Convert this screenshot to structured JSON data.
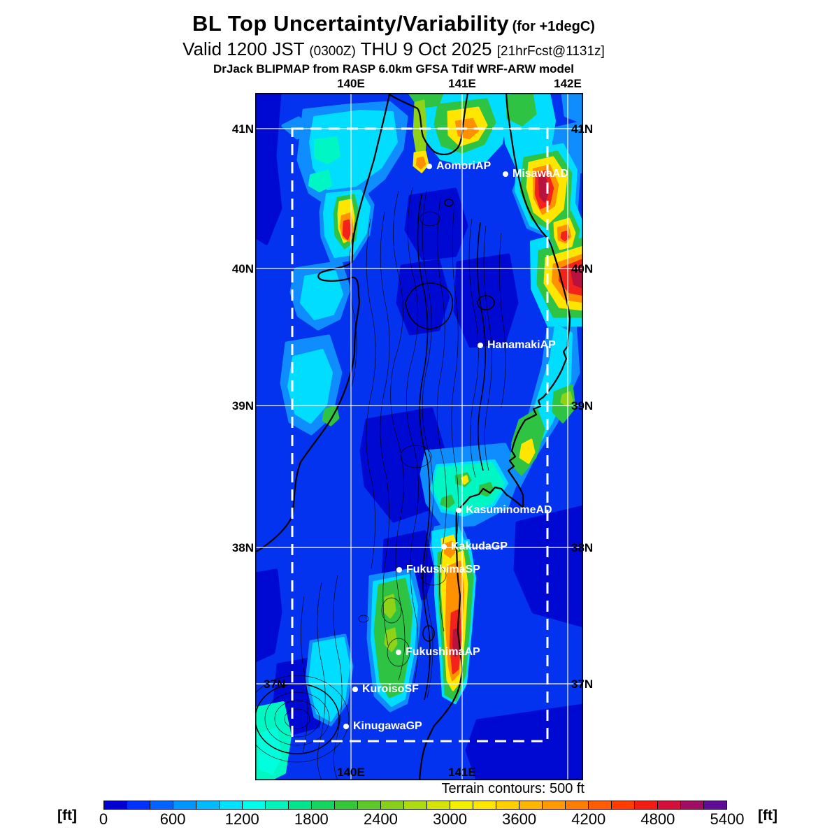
{
  "header": {
    "title": "BL Top Uncertainty/Variability",
    "title_note": "(for +1degC)",
    "valid_prefix": "Valid 1200 JST",
    "valid_zulu": "(0300Z)",
    "valid_date": "THU 9 Oct 2025",
    "valid_fcst": "[21hrFcst@1131z]",
    "model_line": "DrJack BLIPMAP from RASP 6.0km GFSA Tdif WRF-ARW model"
  },
  "map": {
    "grid": {
      "lat_labels": [
        "41N",
        "40N",
        "39N",
        "38N",
        "37N"
      ],
      "lon_labels_top": [
        "140E",
        "141E",
        "142E"
      ],
      "lon_labels_bottom": [
        "140E",
        "141E"
      ]
    },
    "stations": [
      {
        "name": "AomoriAP"
      },
      {
        "name": "MisawaAD"
      },
      {
        "name": "HanamakiAP"
      },
      {
        "name": "KasuminomeAD"
      },
      {
        "name": "KakudaGP"
      },
      {
        "name": "FukushimaSP"
      },
      {
        "name": "FukushimaAP"
      },
      {
        "name": "KuroisoSF"
      },
      {
        "name": "KinugawaGP"
      }
    ],
    "terrain_note": "Terrain contours: 500 ft"
  },
  "colorbar": {
    "unit": "[ft]",
    "min": 0,
    "max": 5400,
    "step": 200,
    "ticks": [
      "0",
      "600",
      "1200",
      "1800",
      "2400",
      "3000",
      "3600",
      "4200",
      "4800",
      "5400"
    ],
    "colors": [
      "#0000d2",
      "#0032ff",
      "#0064ff",
      "#0096ff",
      "#00bcff",
      "#00e2ff",
      "#00ffea",
      "#00f4bc",
      "#00e68e",
      "#16d460",
      "#34c838",
      "#5cc926",
      "#86d01a",
      "#aeda10",
      "#d4e408",
      "#f4ee00",
      "#ffe600",
      "#ffd000",
      "#ffb600",
      "#ff9a00",
      "#ff7e00",
      "#ff5e00",
      "#ff3c00",
      "#f21c12",
      "#d40f3c",
      "#a00e64",
      "#600c94"
    ]
  }
}
